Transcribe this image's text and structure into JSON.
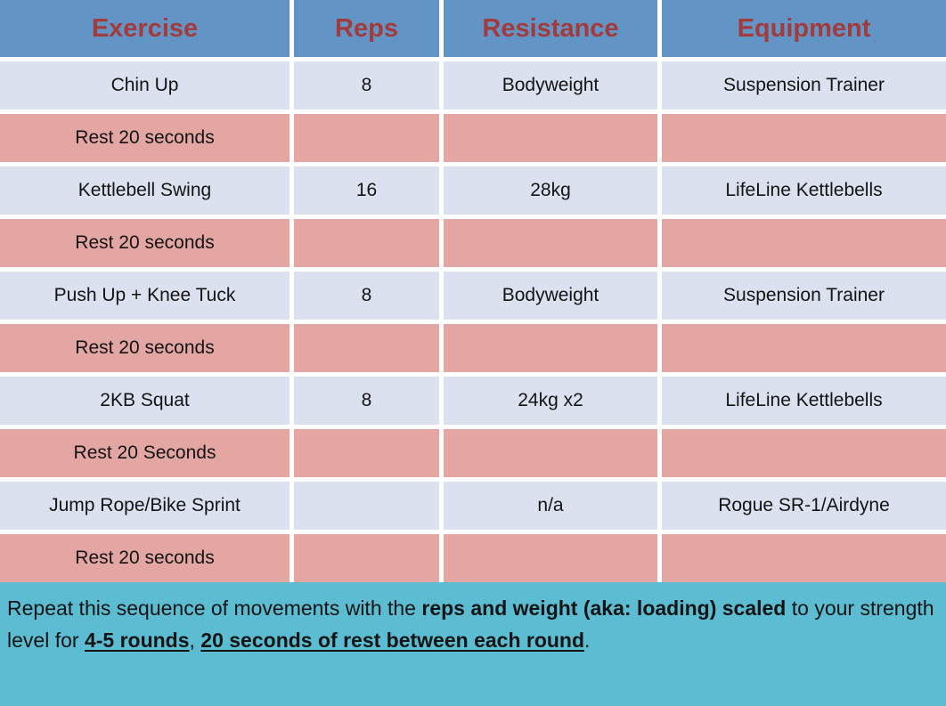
{
  "table": {
    "headers": [
      {
        "key": "exercise",
        "label": "Exercise"
      },
      {
        "key": "reps",
        "label": "Reps"
      },
      {
        "key": "resistance",
        "label": "Resistance"
      },
      {
        "key": "equipment",
        "label": "Equipment"
      }
    ],
    "rows": [
      {
        "type": "exercise",
        "cells": [
          "Chin Up",
          "8",
          "Bodyweight",
          "Suspension Trainer"
        ]
      },
      {
        "type": "rest",
        "cells": [
          "Rest 20 seconds",
          "",
          "",
          ""
        ]
      },
      {
        "type": "exercise",
        "cells": [
          "Kettlebell Swing",
          "16",
          "28kg",
          "LifeLine Kettlebells"
        ]
      },
      {
        "type": "rest",
        "cells": [
          "Rest 20 seconds",
          "",
          "",
          ""
        ]
      },
      {
        "type": "exercise",
        "cells": [
          "Push Up + Knee Tuck",
          "8",
          "Bodyweight",
          "Suspension Trainer"
        ]
      },
      {
        "type": "rest",
        "cells": [
          "Rest 20 seconds",
          "",
          "",
          ""
        ]
      },
      {
        "type": "exercise",
        "cells": [
          "2KB Squat",
          "8",
          "24kg x2",
          "LifeLine Kettlebells"
        ]
      },
      {
        "type": "rest",
        "cells": [
          "Rest 20 Seconds",
          "",
          "",
          ""
        ]
      },
      {
        "type": "exercise",
        "cells": [
          "Jump Rope/Bike Sprint",
          "",
          "n/a",
          "Rogue SR-1/Airdyne"
        ]
      },
      {
        "type": "rest",
        "cells": [
          "Rest 20 seconds",
          "",
          "",
          ""
        ]
      }
    ]
  },
  "footer": {
    "segments": [
      {
        "text": "Repeat this sequence of movements with the ",
        "style": "normal"
      },
      {
        "text": "reps and weight (aka: loading) scaled",
        "style": "bold"
      },
      {
        "text": " to your strength level for ",
        "style": "normal"
      },
      {
        "text": "4-5 rounds",
        "style": "bold-underline"
      },
      {
        "text": ", ",
        "style": "normal"
      },
      {
        "text": "20 seconds of rest between each round",
        "style": "bold-underline"
      },
      {
        "text": ".",
        "style": "normal"
      }
    ]
  },
  "colors": {
    "header_background": "#6394C6",
    "header_text": "#A23B3B",
    "exercise_row_background": "#DCE1EF",
    "rest_row_background": "#E3A6A3",
    "footer_background": "#5BBCD2",
    "body_text": "#141414",
    "gutter": "#FFFFFF"
  }
}
